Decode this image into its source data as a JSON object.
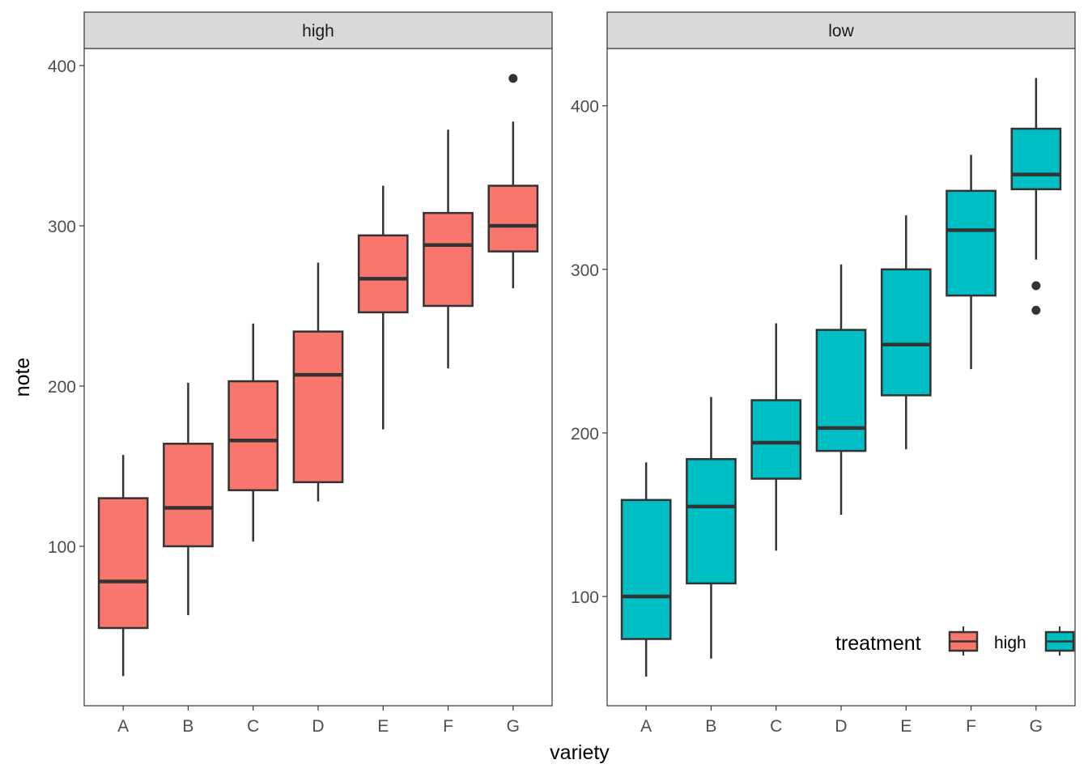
{
  "chart_data": {
    "type": "boxplot",
    "xlabel": "variety",
    "ylabel": "note",
    "categories": [
      "A",
      "B",
      "C",
      "D",
      "E",
      "F",
      "G"
    ],
    "facets": [
      {
        "strip": "high",
        "fill": "#F8766D",
        "ylim": [
          0.5,
          410.6
        ],
        "yticks": [
          100,
          200,
          300,
          400
        ],
        "boxes": [
          {
            "cat": "A",
            "lower_whisker": 19,
            "q1": 49,
            "median": 78,
            "q3": 130,
            "upper_whisker": 157,
            "outliers": []
          },
          {
            "cat": "B",
            "lower_whisker": 57,
            "q1": 100,
            "median": 124,
            "q3": 164,
            "upper_whisker": 202,
            "outliers": []
          },
          {
            "cat": "C",
            "lower_whisker": 103,
            "q1": 135,
            "median": 166,
            "q3": 203,
            "upper_whisker": 239,
            "outliers": []
          },
          {
            "cat": "D",
            "lower_whisker": 128,
            "q1": 140,
            "median": 207,
            "q3": 234,
            "upper_whisker": 277,
            "outliers": []
          },
          {
            "cat": "E",
            "lower_whisker": 173,
            "q1": 246,
            "median": 267,
            "q3": 294,
            "upper_whisker": 325,
            "outliers": []
          },
          {
            "cat": "F",
            "lower_whisker": 211,
            "q1": 250,
            "median": 288,
            "q3": 308,
            "upper_whisker": 360,
            "outliers": []
          },
          {
            "cat": "G",
            "lower_whisker": 261,
            "q1": 284,
            "median": 300,
            "q3": 325,
            "upper_whisker": 365,
            "outliers": [
              392
            ]
          }
        ]
      },
      {
        "strip": "low",
        "fill": "#00BFC4",
        "ylim": [
          33.2,
          435
        ],
        "yticks": [
          100,
          200,
          300,
          400
        ],
        "boxes": [
          {
            "cat": "A",
            "lower_whisker": 51,
            "q1": 74,
            "median": 100,
            "q3": 159,
            "upper_whisker": 182,
            "outliers": []
          },
          {
            "cat": "B",
            "lower_whisker": 62,
            "q1": 108,
            "median": 155,
            "q3": 184,
            "upper_whisker": 222,
            "outliers": []
          },
          {
            "cat": "C",
            "lower_whisker": 128,
            "q1": 172,
            "median": 194,
            "q3": 220,
            "upper_whisker": 267,
            "outliers": []
          },
          {
            "cat": "D",
            "lower_whisker": 150,
            "q1": 189,
            "median": 203,
            "q3": 263,
            "upper_whisker": 303,
            "outliers": []
          },
          {
            "cat": "E",
            "lower_whisker": 190,
            "q1": 223,
            "median": 254,
            "q3": 300,
            "upper_whisker": 333,
            "outliers": []
          },
          {
            "cat": "F",
            "lower_whisker": 239,
            "q1": 284,
            "median": 324,
            "q3": 348,
            "upper_whisker": 370,
            "outliers": []
          },
          {
            "cat": "G",
            "lower_whisker": 306,
            "q1": 349,
            "median": 358,
            "q3": 386,
            "upper_whisker": 417,
            "outliers": [
              290,
              275
            ]
          }
        ]
      }
    ],
    "legend": {
      "title": "treatment",
      "placement": "inside-bottom-right",
      "entries": [
        {
          "label": "high",
          "fill": "#F8766D"
        },
        {
          "label": "",
          "fill": "#00BFC4"
        }
      ]
    }
  }
}
